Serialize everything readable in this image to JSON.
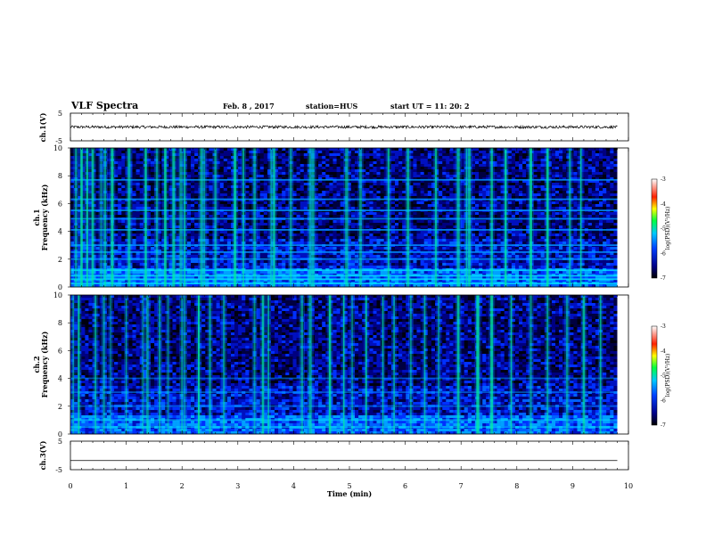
{
  "header": {
    "title": "VLF Spectra",
    "date": "Feb. 8 , 2017",
    "station": "station=HUS",
    "start_ut": "start UT =  11: 20: 2"
  },
  "chart_data": [
    {
      "type": "line",
      "ylabel": "ch.1(V)",
      "ylim": [
        -5,
        5
      ],
      "yticks": [
        "5",
        "-5"
      ],
      "xlim": [
        0,
        10
      ],
      "description_values": {
        "baseline_V": 0,
        "noise_band_V": 0.5
      }
    },
    {
      "type": "heatmap",
      "ylabel": "ch.1\nFrequency (kHz)",
      "ylim": [
        0,
        10
      ],
      "yticks": [
        "0",
        "2",
        "4",
        "6",
        "8",
        "10"
      ],
      "xlim": [
        0,
        10
      ],
      "x_data_end_min": 9.8,
      "colorbar": {
        "label": "log(PSD)(V²/Hz)",
        "range": [
          -7,
          -3
        ],
        "ticks": [
          "-3",
          "-4",
          "-5",
          "-6",
          "-7"
        ]
      },
      "horizontal_lines_khz": [
        0.25,
        0.55,
        0.8,
        1.2,
        2.0,
        2.5,
        3.0,
        4.1,
        4.9,
        5.5,
        6.3,
        7.7
      ],
      "impulse_times_min": [
        0.1,
        0.2,
        0.3,
        0.4,
        0.55,
        0.62,
        0.75,
        1.05,
        1.35,
        1.55,
        1.7,
        1.85,
        1.98,
        2.05,
        2.35,
        2.4,
        2.6,
        2.95,
        3.1,
        3.3,
        3.6,
        3.65,
        3.95,
        4.3,
        4.35,
        4.95,
        5.2,
        5.7,
        6.05,
        6.55,
        6.95,
        7.1,
        7.15,
        7.55,
        7.8,
        8.25,
        8.55,
        8.95,
        9.15
      ]
    },
    {
      "type": "heatmap",
      "ylabel": "ch.2\nFrequency (kHz)",
      "ylim": [
        0,
        10
      ],
      "yticks": [
        "0",
        "2",
        "4",
        "6",
        "8",
        "10"
      ],
      "xlim": [
        0,
        10
      ],
      "x_data_end_min": 9.8,
      "colorbar": {
        "label": "log(PSD)(V²/Hz)",
        "range": [
          -7,
          -3
        ],
        "ticks": [
          "-3",
          "-4",
          "-5",
          "-6",
          "-7"
        ]
      },
      "horizontal_lines_khz": [
        0.5,
        1.0,
        2.0,
        3.0,
        4.0
      ],
      "impulse_times_min": [
        0.05,
        0.15,
        0.45,
        0.6,
        0.72,
        1.0,
        1.3,
        1.38,
        1.6,
        1.75,
        2.0,
        2.05,
        2.3,
        2.5,
        2.75,
        3.3,
        3.45,
        3.55,
        4.15,
        4.3,
        4.65,
        4.9,
        5.05,
        5.3,
        5.6,
        5.8,
        6.1,
        6.35,
        6.6,
        6.95,
        7.3,
        7.55,
        7.9,
        8.25,
        8.55,
        8.9,
        9.2,
        9.5
      ]
    },
    {
      "type": "line",
      "ylabel": "ch.3(V)",
      "ylim": [
        -5,
        5
      ],
      "yticks": [
        "5",
        "-5"
      ],
      "xlim": [
        0,
        10
      ],
      "xlabel": "Time (min)",
      "xticks": [
        "0",
        "1",
        "2",
        "3",
        "4",
        "5",
        "6",
        "7",
        "8",
        "9",
        "10"
      ],
      "description_values": {
        "baseline_V": -1.8
      }
    }
  ]
}
